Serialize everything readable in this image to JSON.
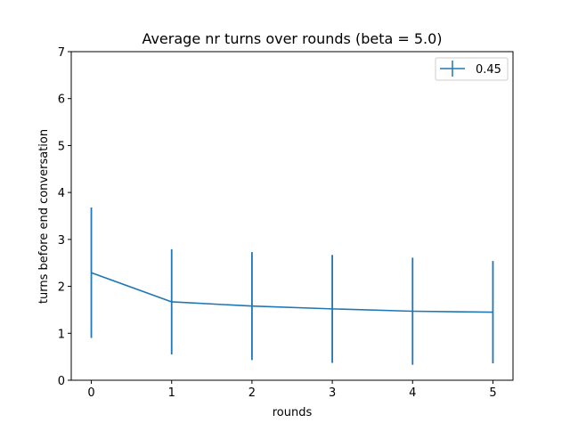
{
  "chart_data": {
    "type": "line",
    "title": "Average nr turns over rounds (beta = 5.0)",
    "xlabel": "rounds",
    "ylabel": "turns before end conversation",
    "x": [
      0,
      1,
      2,
      3,
      4,
      5
    ],
    "xlim": [
      -0.25,
      5.25
    ],
    "ylim": [
      0,
      7
    ],
    "xticks": [
      "0",
      "1",
      "2",
      "3",
      "4",
      "5"
    ],
    "yticks": [
      "0",
      "1",
      "2",
      "3",
      "4",
      "5",
      "6",
      "7"
    ],
    "grid": false,
    "legend_position": "top-right",
    "series": [
      {
        "name": "0.45",
        "color": "#1f77b4",
        "values": [
          2.29,
          1.67,
          1.58,
          1.52,
          1.47,
          1.45
        ],
        "error": [
          1.39,
          1.12,
          1.15,
          1.15,
          1.14,
          1.09
        ]
      }
    ]
  }
}
